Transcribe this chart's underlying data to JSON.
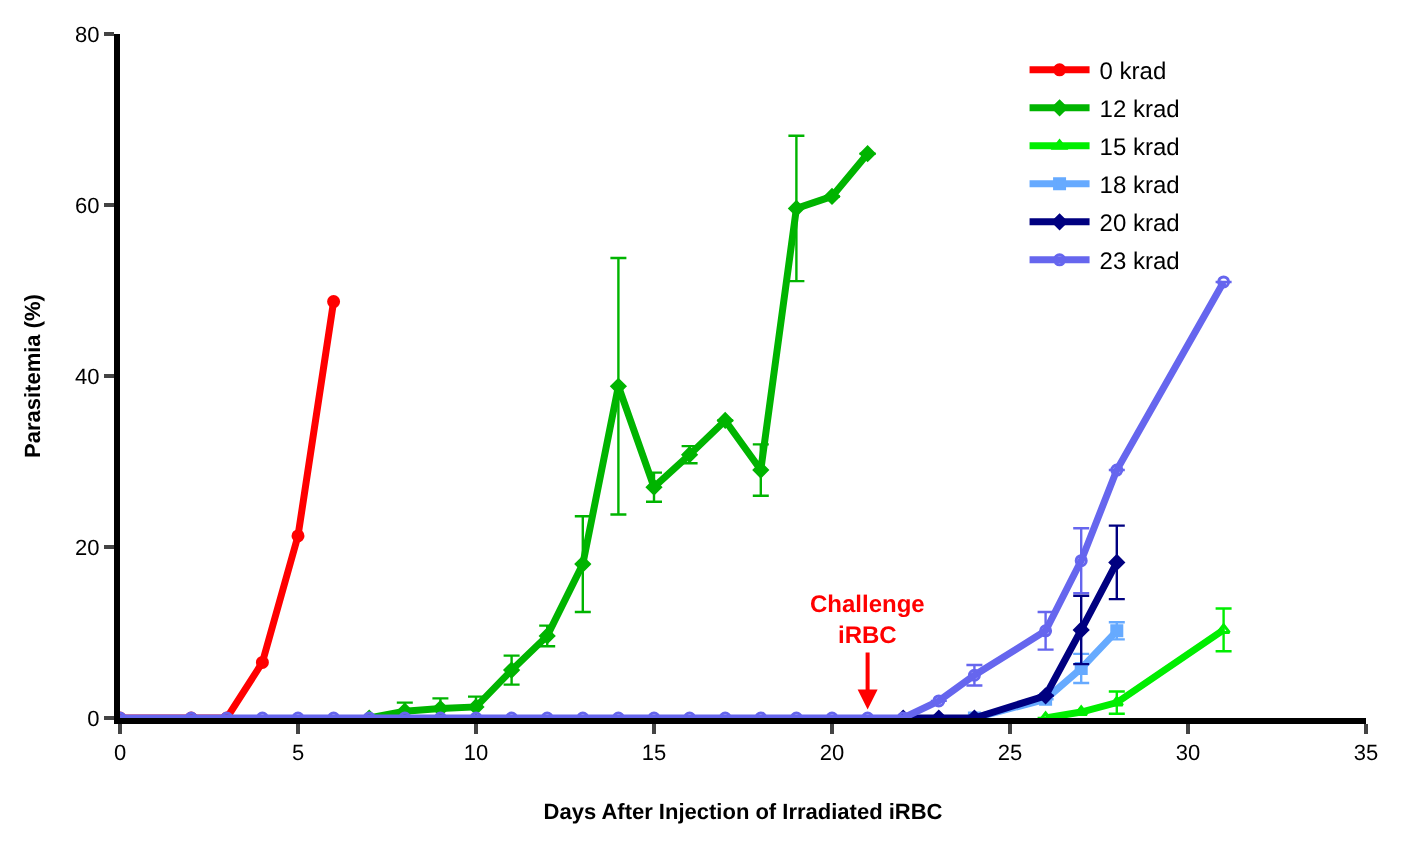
{
  "chart_data": {
    "type": "line",
    "xlabel": "Days After Injection of Irradiated iRBC",
    "ylabel": "Parasitemia (%)",
    "xlim": [
      0,
      35
    ],
    "xticks": [
      0,
      5,
      10,
      15,
      20,
      25,
      30,
      35
    ],
    "ylim": [
      0,
      80
    ],
    "yticks": [
      0,
      20,
      40,
      60,
      80
    ],
    "legend": "top right",
    "line_style": "solid",
    "series": [
      {
        "name": "0 krad",
        "color": "#ff0000",
        "marker": "circle",
        "x": [
          0,
          2,
          3,
          4,
          5,
          6
        ],
        "values": [
          0,
          0,
          0,
          6.5,
          21.3,
          48.7
        ]
      },
      {
        "name": "12 krad",
        "color": "#00b400",
        "marker": "diamond",
        "x": [
          7,
          8,
          9,
          10,
          11,
          12,
          13,
          14,
          15,
          16,
          17,
          18,
          19,
          20,
          21
        ],
        "values": [
          0,
          0.8,
          1.1,
          1.3,
          5.6,
          9.6,
          18,
          38.8,
          27,
          30.8,
          34.8,
          29,
          59.6,
          61,
          66
        ],
        "errors": [
          null,
          1,
          1.2,
          1.2,
          1.7,
          1.2,
          5.6,
          15,
          1.7,
          1,
          null,
          3,
          8.5,
          null,
          null
        ]
      },
      {
        "name": "15 krad",
        "color": "#00ee00",
        "marker": "triangle",
        "x": [
          26,
          27,
          28,
          31
        ],
        "values": [
          0,
          0.7,
          1.8,
          10.3
        ],
        "errors": [
          null,
          null,
          1.3,
          2.5
        ]
      },
      {
        "name": "18 krad",
        "color": "#66aaff",
        "marker": "square",
        "x": [
          24,
          26,
          27,
          28
        ],
        "values": [
          0,
          2.2,
          5.8,
          10.2
        ],
        "errors": [
          null,
          null,
          1.7,
          1
        ]
      },
      {
        "name": "20 krad",
        "color": "#000080",
        "marker": "diamond",
        "x": [
          22,
          23,
          24,
          26,
          27,
          28
        ],
        "values": [
          0,
          0,
          0,
          2.6,
          10.3,
          18.2
        ],
        "errors": [
          null,
          null,
          null,
          null,
          4,
          4.3
        ]
      },
      {
        "name": "23 krad",
        "color": "#6666ee",
        "marker": "circle-open",
        "x": [
          0,
          2,
          3,
          4,
          5,
          6,
          7,
          8,
          9,
          10,
          11,
          12,
          13,
          14,
          15,
          16,
          17,
          18,
          19,
          20,
          21,
          22,
          23,
          24,
          26,
          27,
          28,
          31
        ],
        "values": [
          0,
          0,
          0,
          0,
          0,
          0,
          0,
          0,
          0,
          0,
          0,
          0,
          0,
          0,
          0,
          0,
          0,
          0,
          0,
          0,
          0,
          0,
          2,
          5,
          10.2,
          18.4,
          29,
          51
        ],
        "errors": [
          null,
          null,
          null,
          null,
          null,
          null,
          null,
          null,
          null,
          null,
          null,
          null,
          null,
          null,
          null,
          null,
          null,
          null,
          null,
          null,
          null,
          null,
          null,
          1.2,
          2.2,
          3.8,
          null,
          null
        ]
      }
    ],
    "annotations": [
      {
        "text": "Challenge\niRBC",
        "x": 21,
        "y": 1
      }
    ]
  }
}
